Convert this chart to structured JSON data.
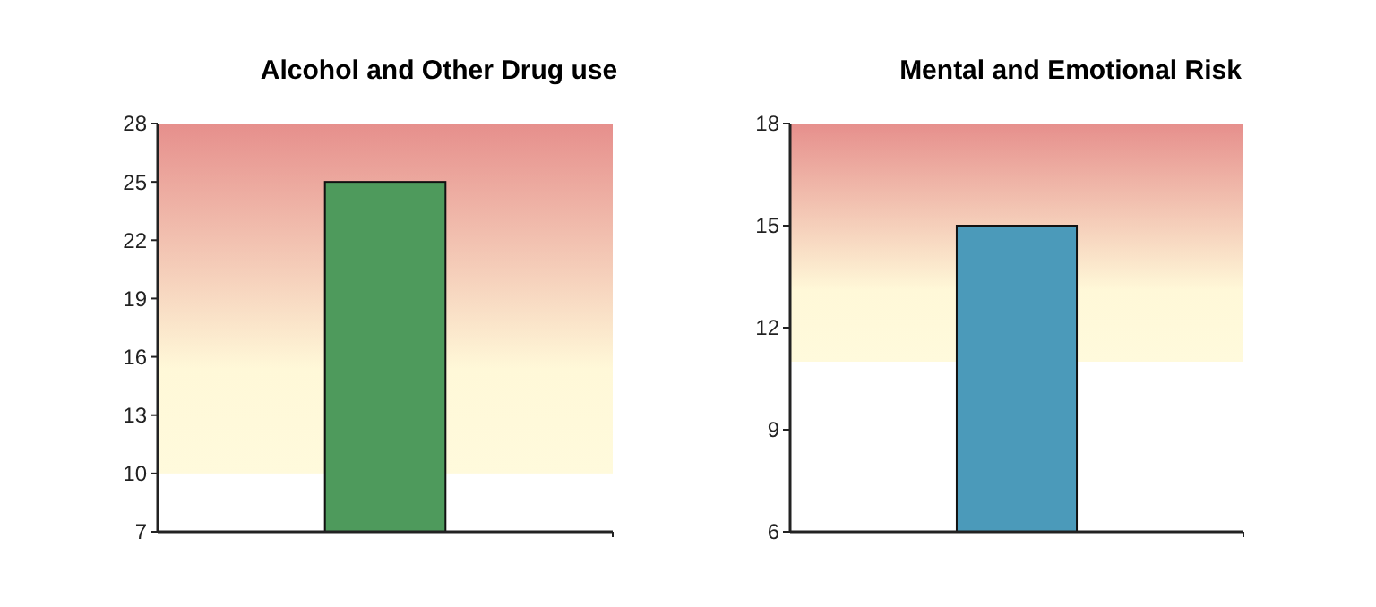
{
  "chart_data": [
    {
      "type": "bar",
      "title": "Alcohol and Other Drug use",
      "categories": [
        null
      ],
      "values": [
        25
      ],
      "color": "#4e9a5c",
      "ylim": [
        7,
        28
      ],
      "yticks": [
        7,
        10,
        13,
        16,
        19,
        22,
        25,
        28
      ],
      "tick_labels": "y",
      "grid": false,
      "bands": [
        {
          "axis": "y",
          "from": 10,
          "to": 28,
          "color": "#e68f8c"
        }
      ]
    },
    {
      "type": "bar",
      "title": "Mental and Emotional Risk",
      "categories": [
        null
      ],
      "values": [
        15
      ],
      "color": "#4b9aba",
      "ylim": [
        6,
        18
      ],
      "yticks": [
        6,
        9,
        12,
        15,
        18
      ],
      "tick_labels": "y",
      "grid": false,
      "bands": [
        {
          "axis": "y",
          "from": 11,
          "to": 18,
          "color": "#e68f8c"
        }
      ]
    }
  ]
}
